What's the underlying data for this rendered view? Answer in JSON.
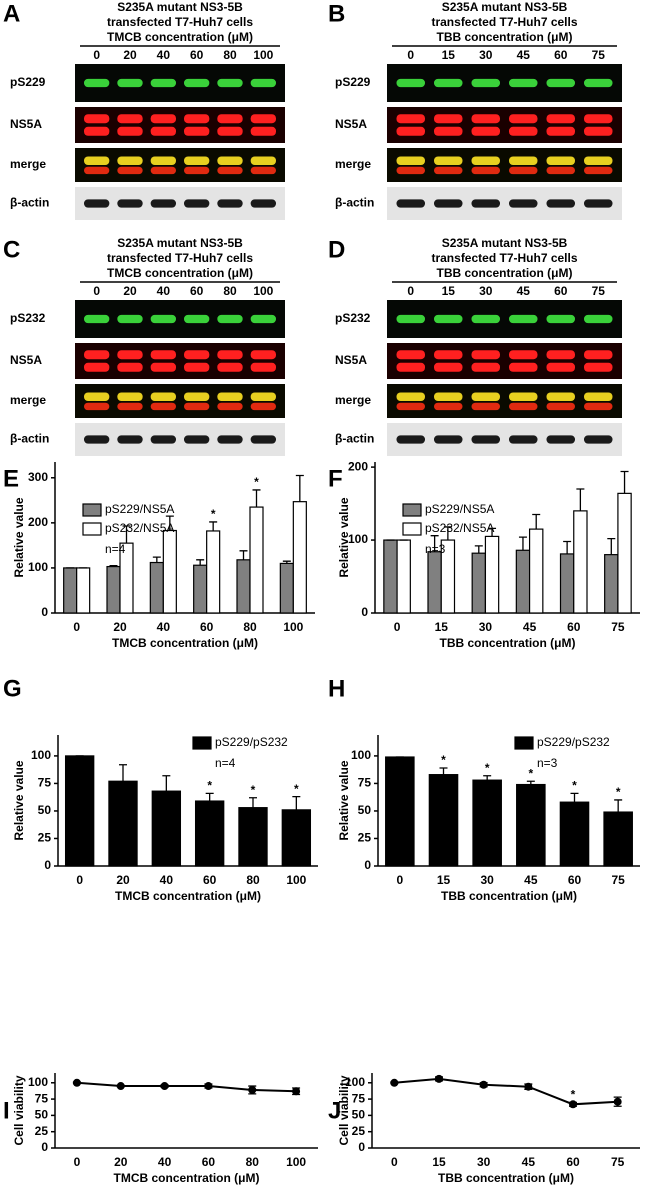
{
  "blots": [
    {
      "letter": "A",
      "title": [
        "S235A mutant NS3-5B",
        "transfected T7-Huh7 cells",
        "TMCB concentration (μM)"
      ],
      "lanes": [
        "0",
        "20",
        "40",
        "60",
        "80",
        "100"
      ],
      "rows": [
        "pS229",
        "NS5A",
        "merge",
        "β-actin"
      ]
    },
    {
      "letter": "B",
      "title": [
        "S235A mutant NS3-5B",
        "transfected T7-Huh7 cells",
        "TBB concentration (μM)"
      ],
      "lanes": [
        "0",
        "15",
        "30",
        "45",
        "60",
        "75"
      ],
      "rows": [
        "pS229",
        "NS5A",
        "merge",
        "β-actin"
      ]
    },
    {
      "letter": "C",
      "title": [
        "S235A mutant NS3-5B",
        "transfected T7-Huh7 cells",
        "TMCB concentration (μM)"
      ],
      "lanes": [
        "0",
        "20",
        "40",
        "60",
        "80",
        "100"
      ],
      "rows": [
        "pS232",
        "NS5A",
        "merge",
        "β-actin"
      ]
    },
    {
      "letter": "D",
      "title": [
        "S235A mutant NS3-5B",
        "transfected T7-Huh7 cells",
        "TBB concentration (μM)"
      ],
      "lanes": [
        "0",
        "15",
        "30",
        "45",
        "60",
        "75"
      ],
      "rows": [
        "pS232",
        "NS5A",
        "merge",
        "β-actin"
      ]
    }
  ],
  "chart_data": [
    {
      "type": "bar",
      "letter": "E",
      "xlabel": "TMCB concentration (μM)",
      "ylabel": "Relative value",
      "annotation": "n=4",
      "legend": "upper left",
      "categories": [
        "0",
        "20",
        "40",
        "60",
        "80",
        "100"
      ],
      "ylim": [
        0,
        335
      ],
      "yticks": [
        0,
        100,
        200,
        300
      ],
      "series": [
        {
          "name": "pS229/NS5A",
          "color": "#808080",
          "values": [
            100,
            103,
            112,
            106,
            118,
            110
          ],
          "errors": [
            0,
            2,
            12,
            12,
            20,
            5
          ],
          "stars": [
            null,
            null,
            null,
            null,
            null,
            null
          ]
        },
        {
          "name": "pS232/NS5A",
          "color": "#ffffff",
          "values": [
            100,
            155,
            183,
            182,
            235,
            247
          ],
          "errors": [
            0,
            38,
            32,
            20,
            38,
            58
          ],
          "stars": [
            null,
            null,
            null,
            "*",
            "*",
            null
          ]
        }
      ]
    },
    {
      "type": "bar",
      "letter": "F",
      "xlabel": "TBB concentration (μM)",
      "ylabel": "Relative value",
      "annotation": "n=3",
      "legend": "upper left",
      "categories": [
        "0",
        "15",
        "30",
        "45",
        "60",
        "75"
      ],
      "ylim": [
        0,
        207
      ],
      "yticks": [
        0,
        100,
        200
      ],
      "series": [
        {
          "name": "pS229/NS5A",
          "color": "#808080",
          "values": [
            100,
            84,
            82,
            86,
            81,
            80
          ],
          "errors": [
            0,
            22,
            10,
            18,
            17,
            22
          ],
          "stars": [
            null,
            null,
            null,
            null,
            null,
            null
          ]
        },
        {
          "name": "pS232/NS5A",
          "color": "#ffffff",
          "values": [
            100,
            100,
            105,
            115,
            140,
            164
          ],
          "errors": [
            0,
            18,
            11,
            20,
            30,
            30
          ],
          "stars": [
            null,
            null,
            null,
            null,
            null,
            null
          ]
        }
      ]
    },
    {
      "type": "bar",
      "letter": "G",
      "xlabel": "TMCB concentration (μM)",
      "ylabel": "Relative value",
      "annotation": "n=4",
      "legend": "upper right",
      "categories": [
        "0",
        "20",
        "40",
        "60",
        "80",
        "100"
      ],
      "ylim": [
        0,
        119
      ],
      "yticks": [
        0,
        25,
        50,
        75,
        100
      ],
      "series": [
        {
          "name": "pS229/pS232",
          "color": "#000000",
          "values": [
            100,
            77,
            68,
            59,
            53,
            51
          ],
          "errors": [
            0,
            15,
            14,
            7,
            9,
            12
          ],
          "stars": [
            null,
            null,
            null,
            "*",
            "*",
            "*"
          ]
        }
      ]
    },
    {
      "type": "bar",
      "letter": "H",
      "xlabel": "TBB concentration (μM)",
      "ylabel": "Relative value",
      "annotation": "n=3",
      "legend": "upper right",
      "categories": [
        "0",
        "15",
        "30",
        "45",
        "60",
        "75"
      ],
      "ylim": [
        0,
        119
      ],
      "yticks": [
        0,
        25,
        50,
        75,
        100
      ],
      "series": [
        {
          "name": "pS229/pS232",
          "color": "#000000",
          "values": [
            99,
            83,
            78,
            74,
            58,
            49
          ],
          "errors": [
            0,
            6,
            4,
            3,
            8,
            11
          ],
          "stars": [
            null,
            "*",
            "*",
            "*",
            "*",
            "*"
          ]
        }
      ]
    },
    {
      "type": "line",
      "letter": "I",
      "xlabel": "TMCB concentration (μM)",
      "ylabel": "Cell viability",
      "categories": [
        "0",
        "20",
        "40",
        "60",
        "80",
        "100"
      ],
      "ylim": [
        0,
        115
      ],
      "yticks": [
        0,
        25,
        50,
        75,
        100
      ],
      "series": [
        {
          "color": "#000000",
          "values": [
            100,
            95,
            95,
            95,
            89,
            87
          ],
          "errors": [
            1,
            1,
            2,
            3,
            6,
            5
          ],
          "stars": [
            null,
            null,
            null,
            null,
            null,
            null
          ]
        }
      ]
    },
    {
      "type": "line",
      "letter": "J",
      "xlabel": "TBB concentration (μM)",
      "ylabel": "Cell viability",
      "categories": [
        "0",
        "15",
        "30",
        "45",
        "60",
        "75"
      ],
      "ylim": [
        0,
        115
      ],
      "yticks": [
        0,
        25,
        50,
        75,
        100
      ],
      "series": [
        {
          "color": "#000000",
          "values": [
            100,
            106,
            97,
            94,
            67,
            71
          ],
          "errors": [
            1,
            3,
            3,
            4,
            3,
            7
          ],
          "stars": [
            null,
            null,
            null,
            null,
            "*",
            null
          ]
        }
      ]
    }
  ]
}
